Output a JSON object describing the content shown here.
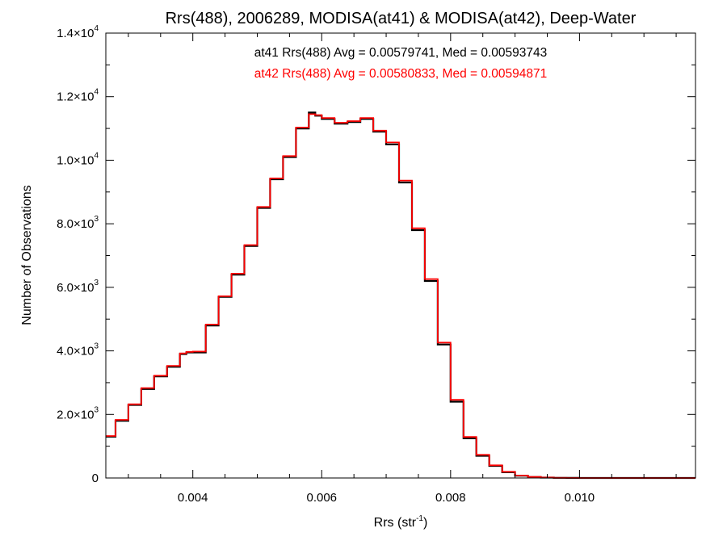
{
  "chart_data": {
    "type": "line",
    "title": "Rrs(488), 2006289, MODISA(at41) & MODISA(at42), Deep-Water",
    "xlabel": {
      "base": "Rrs (str",
      "sup": "-1",
      "tail": ")"
    },
    "ylabel": "Number of Observations",
    "xlim": [
      0.00265,
      0.0118
    ],
    "ylim": [
      0,
      14000
    ],
    "x_ticks": [
      {
        "value": 0.004,
        "label": "0.004"
      },
      {
        "value": 0.006,
        "label": "0.006"
      },
      {
        "value": 0.008,
        "label": "0.008"
      },
      {
        "value": 0.01,
        "label": "0.010"
      }
    ],
    "y_ticks": [
      {
        "value": 0,
        "mant": "0",
        "exp": ""
      },
      {
        "value": 2000,
        "mant": "2.0",
        "exp": "3"
      },
      {
        "value": 4000,
        "mant": "4.0",
        "exp": "3"
      },
      {
        "value": 6000,
        "mant": "6.0",
        "exp": "3"
      },
      {
        "value": 8000,
        "mant": "8.0",
        "exp": "3"
      },
      {
        "value": 10000,
        "mant": "1.0",
        "exp": "4"
      },
      {
        "value": 12000,
        "mant": "1.2",
        "exp": "4"
      },
      {
        "value": 14000,
        "mant": "1.4",
        "exp": "4"
      }
    ],
    "tick_times": "×10",
    "annotations": [
      {
        "text": "at41 Rrs(488) Avg = 0.00579741, Med = 0.00593743",
        "color": "#000000"
      },
      {
        "text": "at42 Rrs(488) Avg = 0.00580833, Med = 0.00594871",
        "color": "#ff0000"
      }
    ],
    "series": [
      {
        "color": "#000000",
        "x": [
          0.00265,
          0.0028,
          0.003,
          0.0032,
          0.0034,
          0.0036,
          0.0038,
          0.0039,
          0.004,
          0.0042,
          0.0044,
          0.0046,
          0.0048,
          0.005,
          0.0052,
          0.0054,
          0.0056,
          0.0058,
          0.0059,
          0.006,
          0.0062,
          0.0064,
          0.0066,
          0.0068,
          0.007,
          0.0072,
          0.0074,
          0.0076,
          0.0078,
          0.008,
          0.0082,
          0.0084,
          0.0086,
          0.0088,
          0.009,
          0.0092,
          0.0094,
          0.0096,
          0.0098,
          0.01,
          0.0105,
          0.011,
          0.0118
        ],
        "y": [
          1300,
          1800,
          2300,
          2800,
          3200,
          3500,
          3900,
          3950,
          3950,
          4800,
          5700,
          6400,
          7300,
          8500,
          9400,
          10100,
          11000,
          11500,
          11400,
          11300,
          11150,
          11200,
          11300,
          10900,
          10500,
          9300,
          7800,
          6200,
          4200,
          2400,
          1250,
          700,
          380,
          180,
          70,
          30,
          12,
          5,
          2,
          1,
          0,
          0,
          0
        ]
      },
      {
        "color": "#ff0000",
        "x": [
          0.00265,
          0.0028,
          0.003,
          0.0032,
          0.0034,
          0.0036,
          0.0038,
          0.0039,
          0.004,
          0.0042,
          0.0044,
          0.0046,
          0.0048,
          0.005,
          0.0052,
          0.0054,
          0.0056,
          0.0058,
          0.0059,
          0.006,
          0.0062,
          0.0064,
          0.0066,
          0.0068,
          0.007,
          0.0072,
          0.0074,
          0.0076,
          0.0078,
          0.008,
          0.0082,
          0.0084,
          0.0086,
          0.0088,
          0.009,
          0.0092,
          0.0094,
          0.0096,
          0.0098,
          0.01,
          0.0105,
          0.011,
          0.0118
        ],
        "y": [
          1320,
          1830,
          2320,
          2830,
          3220,
          3530,
          3920,
          3970,
          3980,
          4830,
          5720,
          6430,
          7330,
          8530,
          9430,
          10130,
          11030,
          11450,
          11420,
          11330,
          11180,
          11230,
          11330,
          10930,
          10560,
          9360,
          7860,
          6260,
          4260,
          2460,
          1290,
          730,
          400,
          195,
          78,
          34,
          14,
          6,
          2,
          1,
          0,
          0,
          0
        ]
      }
    ],
    "grid": false,
    "legend": "none"
  }
}
